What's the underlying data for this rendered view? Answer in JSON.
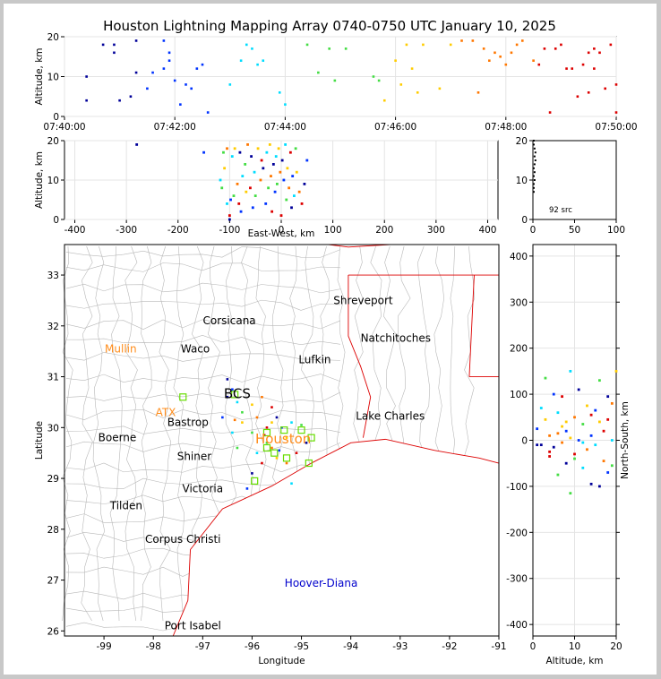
{
  "title": "Houston Lightning Mapping Array 0740-0750 UTC January 10, 2025",
  "colors": {
    "early": "#000099",
    "blue": "#0033ff",
    "cyan": "#00ddff",
    "green": "#44dd44",
    "yellow": "#ffcc00",
    "orange": "#ff7700",
    "red": "#dd0000",
    "coast": "#dd0000",
    "county": "#b8b8b8",
    "station": "#66dd00",
    "city_label": "#000000",
    "accent_label": "#ff8c1a",
    "offshore_label": "#0000cc"
  },
  "chart_data": [
    {
      "id": "time-height",
      "type": "scatter",
      "title": "",
      "xlabel": "",
      "ylabel": "Altitude, km",
      "x_ticks": [
        "07:40:00",
        "07:42:00",
        "07:44:00",
        "07:46:00",
        "07:48:00",
        "07:50:00"
      ],
      "xlim_minutes": [
        0,
        10
      ],
      "ylim": [
        0,
        20
      ],
      "y_ticks": [
        0,
        10,
        20
      ],
      "points": [
        [
          0.4,
          4
        ],
        [
          0.4,
          10
        ],
        [
          0.7,
          18
        ],
        [
          0.9,
          18
        ],
        [
          0.9,
          16
        ],
        [
          1.0,
          4
        ],
        [
          1.2,
          5
        ],
        [
          1.3,
          19
        ],
        [
          1.3,
          11
        ],
        [
          1.5,
          7
        ],
        [
          1.6,
          11
        ],
        [
          1.8,
          12
        ],
        [
          1.8,
          19
        ],
        [
          1.9,
          14
        ],
        [
          1.9,
          16
        ],
        [
          2.0,
          9
        ],
        [
          2.1,
          3
        ],
        [
          2.2,
          8
        ],
        [
          2.3,
          7
        ],
        [
          2.4,
          12
        ],
        [
          2.5,
          13
        ],
        [
          2.6,
          1
        ],
        [
          3.0,
          8
        ],
        [
          3.2,
          14
        ],
        [
          3.3,
          18
        ],
        [
          3.4,
          17
        ],
        [
          3.5,
          13
        ],
        [
          3.6,
          14
        ],
        [
          3.9,
          6
        ],
        [
          4.0,
          3
        ],
        [
          4.4,
          18
        ],
        [
          4.6,
          11
        ],
        [
          4.8,
          17
        ],
        [
          4.9,
          9
        ],
        [
          5.1,
          17
        ],
        [
          5.6,
          10
        ],
        [
          5.7,
          9
        ],
        [
          5.8,
          4
        ],
        [
          6.0,
          14
        ],
        [
          6.1,
          8
        ],
        [
          6.2,
          18
        ],
        [
          6.3,
          12
        ],
        [
          6.4,
          6
        ],
        [
          6.5,
          18
        ],
        [
          6.8,
          7
        ],
        [
          7.0,
          18
        ],
        [
          7.2,
          19
        ],
        [
          7.4,
          19
        ],
        [
          7.5,
          6
        ],
        [
          7.6,
          17
        ],
        [
          7.7,
          14
        ],
        [
          7.8,
          16
        ],
        [
          7.9,
          15
        ],
        [
          8.0,
          13
        ],
        [
          8.1,
          16
        ],
        [
          8.2,
          18
        ],
        [
          8.3,
          19
        ],
        [
          8.5,
          14
        ],
        [
          8.6,
          13
        ],
        [
          8.7,
          17
        ],
        [
          8.9,
          17
        ],
        [
          9.0,
          18
        ],
        [
          9.1,
          12
        ],
        [
          9.3,
          5
        ],
        [
          9.4,
          13
        ],
        [
          9.5,
          6
        ],
        [
          9.6,
          12
        ],
        [
          9.7,
          16
        ],
        [
          9.8,
          7
        ],
        [
          9.9,
          18
        ],
        [
          10.0,
          1
        ],
        [
          10.0,
          8
        ],
        [
          9.5,
          16
        ],
        [
          9.2,
          12
        ],
        [
          8.8,
          1
        ],
        [
          9.6,
          17
        ]
      ]
    },
    {
      "id": "ew-height",
      "type": "scatter",
      "xlabel": "East-West, km",
      "ylabel": "Altitude, km",
      "x_ticks": [
        -400,
        -300,
        -200,
        -100,
        0,
        100,
        200,
        300,
        400
      ],
      "y_ticks": [
        0,
        10,
        20
      ],
      "xlim": [
        -420,
        420
      ],
      "ylim": [
        0,
        20
      ],
      "points": [
        [
          -280,
          19
        ],
        [
          -150,
          17
        ],
        [
          -118,
          10
        ],
        [
          -115,
          8
        ],
        [
          -110,
          13
        ],
        [
          -105,
          18
        ],
        [
          -100,
          1
        ],
        [
          -100,
          0
        ],
        [
          -98,
          5
        ],
        [
          -95,
          16
        ],
        [
          -92,
          6
        ],
        [
          -90,
          18
        ],
        [
          -85,
          9
        ],
        [
          -82,
          4
        ],
        [
          -80,
          17
        ],
        [
          -78,
          2
        ],
        [
          -75,
          11
        ],
        [
          -70,
          14
        ],
        [
          -68,
          7
        ],
        [
          -65,
          19
        ],
        [
          -60,
          8
        ],
        [
          -58,
          16
        ],
        [
          -55,
          3
        ],
        [
          -52,
          12
        ],
        [
          -50,
          6
        ],
        [
          -45,
          18
        ],
        [
          -40,
          10
        ],
        [
          -38,
          15
        ],
        [
          -35,
          13
        ],
        [
          -30,
          4
        ],
        [
          -28,
          17
        ],
        [
          -25,
          8
        ],
        [
          -22,
          19
        ],
        [
          -20,
          11
        ],
        [
          -18,
          2
        ],
        [
          -15,
          14
        ],
        [
          -12,
          7
        ],
        [
          -10,
          16
        ],
        [
          -8,
          9
        ],
        [
          -5,
          18
        ],
        [
          -2,
          12
        ],
        [
          0,
          1
        ],
        [
          2,
          15
        ],
        [
          5,
          10
        ],
        [
          8,
          19
        ],
        [
          10,
          5
        ],
        [
          12,
          13
        ],
        [
          15,
          8
        ],
        [
          18,
          17
        ],
        [
          20,
          3
        ],
        [
          22,
          11
        ],
        [
          25,
          6
        ],
        [
          28,
          18
        ],
        [
          30,
          12
        ],
        [
          35,
          7
        ],
        [
          40,
          4
        ],
        [
          45,
          9
        ],
        [
          50,
          15
        ],
        [
          -105,
          4
        ],
        [
          -112,
          17
        ]
      ]
    },
    {
      "id": "altitude-histogram",
      "type": "scatter",
      "annotation": "92 src",
      "x_ticks": [
        0,
        50,
        100
      ],
      "y_ticks": [
        0,
        10,
        20
      ],
      "xlim": [
        0,
        100
      ],
      "ylim": [
        0,
        20
      ],
      "points": [
        [
          1,
          20
        ],
        [
          1,
          19
        ],
        [
          2,
          18
        ],
        [
          3,
          17
        ],
        [
          2,
          16
        ],
        [
          3,
          15
        ],
        [
          2,
          14
        ],
        [
          1,
          13
        ],
        [
          2,
          12
        ],
        [
          1,
          11
        ],
        [
          2,
          10
        ],
        [
          1,
          9
        ],
        [
          1,
          8
        ],
        [
          1,
          7
        ]
      ]
    },
    {
      "id": "plan-view",
      "type": "scatter",
      "xlabel": "Longitude",
      "ylabel": "Latitude",
      "x_ticks": [
        -99,
        -98,
        -97,
        -96,
        -95,
        -94,
        -93,
        -92,
        -91
      ],
      "y_ticks": [
        26,
        27,
        28,
        29,
        30,
        31,
        32,
        33
      ],
      "xlim": [
        -99.8,
        -91.0
      ],
      "ylim": [
        25.9,
        33.6
      ],
      "cities": [
        {
          "name": "Shreveport",
          "lon": -93.75,
          "lat": 32.5,
          "style": "city"
        },
        {
          "name": "Corsicana",
          "lon": -96.46,
          "lat": 32.1,
          "style": "city"
        },
        {
          "name": "Natchitoches",
          "lon": -93.09,
          "lat": 31.76,
          "style": "city"
        },
        {
          "name": "Mullin",
          "lon": -98.66,
          "lat": 31.55,
          "style": "accent"
        },
        {
          "name": "Waco",
          "lon": -97.15,
          "lat": 31.55,
          "style": "city"
        },
        {
          "name": "Lufkin",
          "lon": -94.73,
          "lat": 31.34,
          "style": "city"
        },
        {
          "name": "BCS",
          "lon": -96.3,
          "lat": 30.65,
          "style": "big"
        },
        {
          "name": "ATX",
          "lon": -97.75,
          "lat": 30.3,
          "style": "accent"
        },
        {
          "name": "Bastrop",
          "lon": -97.3,
          "lat": 30.1,
          "style": "city"
        },
        {
          "name": "Lake Charles",
          "lon": -93.2,
          "lat": 30.23,
          "style": "city"
        },
        {
          "name": "Houston",
          "lon": -95.37,
          "lat": 29.76,
          "style": "accent_big"
        },
        {
          "name": "Boerne",
          "lon": -98.73,
          "lat": 29.8,
          "style": "city"
        },
        {
          "name": "Shiner",
          "lon": -97.17,
          "lat": 29.43,
          "style": "city"
        },
        {
          "name": "Victoria",
          "lon": -97.0,
          "lat": 28.8,
          "style": "city"
        },
        {
          "name": "Tilden",
          "lon": -98.55,
          "lat": 28.46,
          "style": "city"
        },
        {
          "name": "Corpus Christi",
          "lon": -97.4,
          "lat": 27.8,
          "style": "city"
        },
        {
          "name": "Hoover-Diana",
          "lon": -94.6,
          "lat": 26.94,
          "style": "offshore"
        },
        {
          "name": "Port Isabel",
          "lon": -97.2,
          "lat": 26.1,
          "style": "city"
        }
      ],
      "stations": [
        [
          -97.4,
          30.6
        ],
        [
          -96.35,
          30.65
        ],
        [
          -95.7,
          29.9
        ],
        [
          -95.7,
          29.6
        ],
        [
          -95.55,
          29.5
        ],
        [
          -95.35,
          29.95
        ],
        [
          -95.3,
          29.4
        ],
        [
          -95.0,
          29.95
        ],
        [
          -94.85,
          29.3
        ],
        [
          -95.95,
          28.95
        ],
        [
          -94.8,
          29.8
        ]
      ],
      "points": [
        [
          -96.5,
          30.95
        ],
        [
          -96.4,
          30.75
        ],
        [
          -96.3,
          30.5
        ],
        [
          -96.2,
          30.3
        ],
        [
          -96.0,
          30.45
        ],
        [
          -95.8,
          30.6
        ],
        [
          -95.6,
          30.4
        ],
        [
          -95.5,
          30.2
        ],
        [
          -95.4,
          30.0
        ],
        [
          -95.2,
          30.1
        ],
        [
          -95.0,
          30.05
        ],
        [
          -95.3,
          29.8
        ],
        [
          -95.6,
          29.6
        ],
        [
          -95.8,
          29.3
        ],
        [
          -96.0,
          29.1
        ],
        [
          -96.1,
          28.8
        ],
        [
          -95.9,
          29.5
        ],
        [
          -95.7,
          29.7
        ],
        [
          -95.5,
          29.4
        ],
        [
          -95.3,
          29.3
        ],
        [
          -95.1,
          29.5
        ],
        [
          -94.9,
          29.7
        ],
        [
          -96.6,
          30.2
        ],
        [
          -96.4,
          29.9
        ],
        [
          -96.3,
          29.6
        ],
        [
          -96.2,
          30.1
        ],
        [
          -95.9,
          30.2
        ],
        [
          -95.7,
          30.0
        ],
        [
          -96.5,
          30.6
        ],
        [
          -95.45,
          29.55
        ],
        [
          -95.2,
          28.9
        ],
        [
          -96.0,
          29.9
        ],
        [
          -95.6,
          30.1
        ],
        [
          -96.35,
          30.15
        ],
        [
          -95.75,
          29.85
        ]
      ]
    },
    {
      "id": "ns-height",
      "type": "scatter",
      "xlabel": "Altitude, km",
      "ylabel": "North-South, km",
      "x_ticks": [
        0,
        10,
        20
      ],
      "y_ticks": [
        -400,
        -300,
        -200,
        -100,
        0,
        100,
        200,
        300,
        400
      ],
      "xlim": [
        0,
        20
      ],
      "ylim": [
        -425,
        425
      ],
      "points": [
        [
          1,
          -10
        ],
        [
          1,
          25
        ],
        [
          2,
          70
        ],
        [
          3,
          135
        ],
        [
          3,
          45
        ],
        [
          4,
          10
        ],
        [
          4,
          -35
        ],
        [
          5,
          -15
        ],
        [
          5,
          100
        ],
        [
          6,
          60
        ],
        [
          6,
          -75
        ],
        [
          7,
          30
        ],
        [
          7,
          -5
        ],
        [
          7,
          95
        ],
        [
          8,
          -50
        ],
        [
          8,
          20
        ],
        [
          9,
          150
        ],
        [
          9,
          -115
        ],
        [
          9,
          5
        ],
        [
          10,
          50
        ],
        [
          10,
          -30
        ],
        [
          11,
          110
        ],
        [
          11,
          0
        ],
        [
          12,
          -60
        ],
        [
          12,
          35
        ],
        [
          13,
          75
        ],
        [
          13,
          -20
        ],
        [
          14,
          55
        ],
        [
          14,
          -95
        ],
        [
          15,
          65
        ],
        [
          15,
          -10
        ],
        [
          16,
          130
        ],
        [
          16,
          40
        ],
        [
          17,
          -45
        ],
        [
          17,
          20
        ],
        [
          18,
          95
        ],
        [
          18,
          -70
        ],
        [
          19,
          0
        ],
        [
          19,
          -55
        ],
        [
          20,
          150
        ],
        [
          19,
          80
        ],
        [
          18,
          45
        ],
        [
          16,
          -100
        ],
        [
          14,
          10
        ],
        [
          12,
          -5
        ],
        [
          10,
          -40
        ],
        [
          8,
          40
        ],
        [
          6,
          15
        ],
        [
          4,
          -25
        ],
        [
          2,
          -10
        ]
      ]
    }
  ]
}
